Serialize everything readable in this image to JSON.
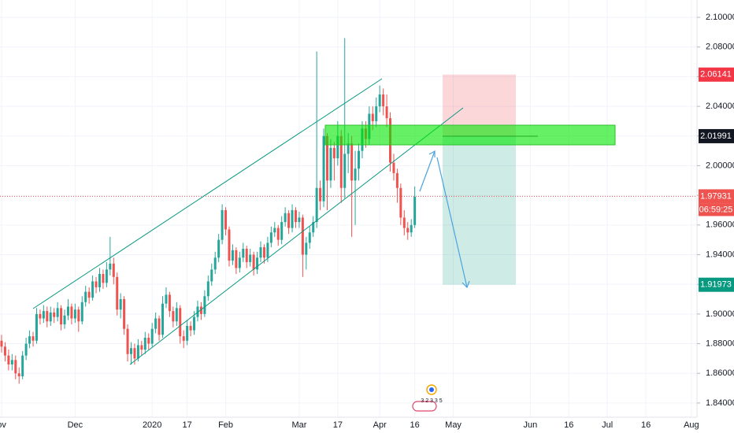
{
  "chart_data": {
    "type": "candlestick",
    "up_color": "#26a69a",
    "down_color": "#ef5350",
    "grid": true,
    "xlim": [
      -0.45,
      198.6
    ],
    "xticks": [
      {
        "value": 0,
        "label": "ov"
      },
      {
        "value": 21,
        "label": "Dec"
      },
      {
        "value": 43,
        "label": "2020"
      },
      {
        "value": 53,
        "label": "17"
      },
      {
        "value": 64,
        "label": "Feb"
      },
      {
        "value": 85,
        "label": "Mar"
      },
      {
        "value": 96,
        "label": "17"
      },
      {
        "value": 108,
        "label": "Apr"
      },
      {
        "value": 118,
        "label": "16"
      },
      {
        "value": 129,
        "label": "May"
      },
      {
        "value": 151,
        "label": "Jun"
      },
      {
        "value": 162,
        "label": "16"
      },
      {
        "value": 173,
        "label": "Jul"
      },
      {
        "value": 184,
        "label": "16"
      },
      {
        "value": 197,
        "label": "Aug"
      }
    ],
    "ylim": [
      1.8304,
      2.1117
    ],
    "yticks": [
      {
        "value": 1.84,
        "label": "1.84000"
      },
      {
        "value": 1.86,
        "label": "1.86000"
      },
      {
        "value": 1.88,
        "label": "1.88000"
      },
      {
        "value": 1.9,
        "label": "1.90000"
      },
      {
        "value": 1.92,
        "label": "1.92000"
      },
      {
        "value": 1.94,
        "label": "1.94000"
      },
      {
        "value": 1.96,
        "label": "1.96000"
      },
      {
        "value": 1.98,
        "label": "1.98000"
      },
      {
        "value": 2.0,
        "label": "2.00000"
      },
      {
        "value": 2.02,
        "label": "2.02000"
      },
      {
        "value": 2.04,
        "label": "2.04000"
      },
      {
        "value": 2.06,
        "label": "2.06000"
      },
      {
        "value": 2.08,
        "label": "2.08000"
      },
      {
        "value": 2.1,
        "label": "2.10000"
      }
    ],
    "open": [
      1.882,
      1.878,
      1.872,
      1.866,
      1.869,
      1.86,
      1.858,
      1.872,
      1.88,
      1.885,
      1.882,
      1.9,
      1.897,
      1.902,
      1.895,
      1.901,
      1.898,
      1.904,
      1.893,
      1.899,
      1.905,
      1.897,
      1.903,
      1.895,
      1.908,
      1.915,
      1.911,
      1.922,
      1.918,
      1.927,
      1.921,
      1.93,
      1.934,
      1.925,
      1.903,
      1.91,
      1.89,
      1.873,
      1.877,
      1.87,
      1.879,
      1.876,
      1.884,
      1.88,
      1.89,
      1.897,
      1.886,
      1.907,
      1.913,
      1.902,
      1.895,
      1.904,
      1.885,
      1.882,
      1.892,
      1.889,
      1.898,
      1.905,
      1.9,
      1.912,
      1.922,
      1.93,
      1.938,
      1.95,
      1.97,
      1.957,
      1.936,
      1.943,
      1.931,
      1.938,
      1.944,
      1.935,
      1.94,
      1.93,
      1.938,
      1.945,
      1.938,
      1.948,
      1.955,
      1.958,
      1.95,
      1.962,
      1.968,
      1.958,
      1.97,
      1.962,
      1.965,
      1.94,
      1.948,
      1.955,
      1.962,
      1.985,
      1.976,
      2.02,
      1.99,
      2.012,
      2.005,
      2.02,
      1.985,
      2.008,
      2.015,
      1.99,
      1.998,
      2.01,
      2.025,
      2.018,
      2.035,
      2.03,
      2.04,
      2.048,
      2.04,
      2.032,
      2.002,
      1.995,
      1.985,
      1.965,
      1.958,
      1.955,
      1.96
    ],
    "high": [
      1.886,
      1.881,
      1.876,
      1.873,
      1.872,
      1.864,
      1.875,
      1.884,
      1.889,
      1.888,
      1.904,
      1.903,
      1.906,
      1.905,
      1.905,
      1.904,
      1.908,
      1.906,
      1.903,
      1.91,
      1.907,
      1.907,
      1.905,
      1.912,
      1.919,
      1.918,
      1.926,
      1.925,
      1.931,
      1.93,
      1.935,
      1.952,
      1.938,
      1.928,
      1.914,
      1.912,
      1.893,
      1.881,
      1.88,
      1.883,
      1.882,
      1.888,
      1.887,
      1.894,
      1.901,
      1.899,
      1.912,
      1.918,
      1.915,
      1.905,
      1.908,
      1.906,
      1.889,
      1.896,
      1.895,
      1.902,
      1.909,
      1.908,
      1.916,
      1.926,
      1.934,
      1.942,
      1.954,
      1.974,
      1.972,
      1.959,
      1.947,
      1.945,
      1.942,
      1.948,
      1.946,
      1.944,
      1.942,
      1.942,
      1.949,
      1.947,
      1.952,
      1.959,
      1.962,
      1.96,
      1.966,
      1.972,
      1.97,
      1.974,
      1.972,
      1.969,
      1.967,
      1.952,
      1.959,
      1.966,
      2.077,
      1.99,
      2.025,
      2.022,
      2.018,
      2.016,
      2.03,
      2.024,
      2.086,
      2.022,
      2.02,
      2.01,
      2.015,
      2.03,
      2.03,
      2.04,
      2.04,
      2.046,
      2.054,
      2.052,
      2.048,
      2.036,
      2.008,
      1.998,
      1.988,
      1.97,
      1.962,
      1.964,
      1.986
    ],
    "low": [
      1.874,
      1.868,
      1.862,
      1.862,
      1.856,
      1.853,
      1.856,
      1.869,
      1.877,
      1.878,
      1.88,
      1.893,
      1.894,
      1.891,
      1.892,
      1.894,
      1.895,
      1.889,
      1.89,
      1.896,
      1.893,
      1.894,
      1.888,
      1.893,
      1.905,
      1.907,
      1.909,
      1.914,
      1.915,
      1.917,
      1.918,
      1.926,
      1.92,
      1.899,
      1.897,
      1.886,
      1.868,
      1.866,
      1.866,
      1.868,
      1.872,
      1.873,
      1.876,
      1.878,
      1.887,
      1.882,
      1.884,
      1.904,
      1.898,
      1.891,
      1.892,
      1.88,
      1.877,
      1.879,
      1.885,
      1.886,
      1.895,
      1.896,
      1.898,
      1.909,
      1.919,
      1.927,
      1.935,
      1.947,
      1.953,
      1.932,
      1.933,
      1.927,
      1.928,
      1.935,
      1.931,
      1.932,
      1.926,
      1.927,
      1.935,
      1.934,
      1.935,
      1.945,
      1.952,
      1.946,
      1.947,
      1.959,
      1.954,
      1.955,
      1.958,
      1.958,
      1.925,
      1.93,
      1.944,
      1.952,
      1.958,
      1.97,
      1.972,
      1.97,
      1.985,
      1.99,
      2.0,
      1.975,
      1.978,
      1.995,
      1.952,
      1.96,
      1.99,
      2.005,
      2.012,
      2.014,
      2.024,
      2.026,
      2.036,
      2.034,
      2.026,
      1.996,
      1.99,
      1.975,
      1.96,
      1.953,
      1.95,
      1.952,
      1.958
    ],
    "close": [
      1.878,
      1.872,
      1.866,
      1.869,
      1.86,
      1.858,
      1.872,
      1.88,
      1.885,
      1.882,
      1.9,
      1.897,
      1.902,
      1.895,
      1.901,
      1.898,
      1.904,
      1.893,
      1.899,
      1.905,
      1.897,
      1.903,
      1.895,
      1.908,
      1.915,
      1.911,
      1.922,
      1.918,
      1.927,
      1.921,
      1.93,
      1.934,
      1.925,
      1.903,
      1.91,
      1.89,
      1.873,
      1.877,
      1.87,
      1.879,
      1.876,
      1.884,
      1.88,
      1.89,
      1.897,
      1.886,
      1.907,
      1.913,
      1.902,
      1.895,
      1.904,
      1.885,
      1.882,
      1.892,
      1.889,
      1.898,
      1.905,
      1.9,
      1.912,
      1.922,
      1.93,
      1.938,
      1.95,
      1.97,
      1.957,
      1.936,
      1.943,
      1.931,
      1.938,
      1.944,
      1.935,
      1.94,
      1.93,
      1.938,
      1.945,
      1.938,
      1.948,
      1.955,
      1.958,
      1.95,
      1.962,
      1.968,
      1.958,
      1.97,
      1.962,
      1.965,
      1.94,
      1.948,
      1.955,
      1.962,
      1.985,
      1.976,
      2.02,
      1.99,
      2.012,
      2.005,
      2.02,
      1.985,
      2.008,
      2.015,
      1.99,
      1.998,
      2.01,
      2.025,
      2.018,
      2.035,
      2.03,
      2.04,
      2.048,
      2.04,
      2.032,
      2.002,
      1.995,
      1.985,
      1.965,
      1.958,
      1.955,
      1.96,
      1.979
    ],
    "last_price": 1.97931,
    "countdown": "06:59:25",
    "position": {
      "stop": 2.06141,
      "entry": 2.01991,
      "target": 1.91973
    },
    "events_label": "3 2 3 3 5"
  }
}
